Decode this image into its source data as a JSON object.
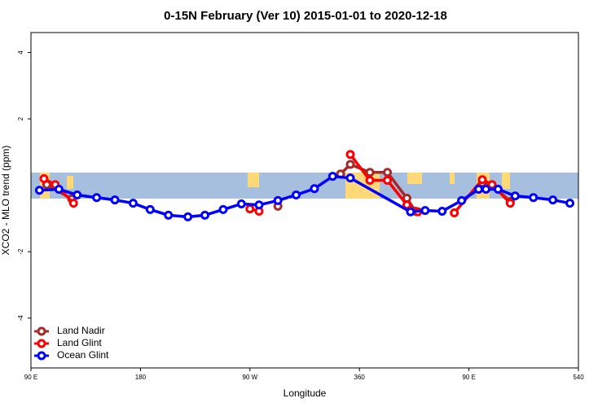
{
  "chart_data": {
    "type": "line",
    "title": "0-15N February (Ver 10)   2015-01-01 to 2020-12-18",
    "x_label": "Longitude",
    "y_label": "XCO2 - MLO trend (ppm)",
    "xlim": [
      90,
      540
    ],
    "xticks": [
      {
        "value": 90,
        "label": "90 E"
      },
      180,
      {
        "value": 270,
        "label": "90 W"
      },
      360,
      {
        "value": 450,
        "label": "90 E"
      },
      540
    ],
    "ylim": [
      -5.5,
      4.6
    ],
    "yticks": [
      -4,
      -2,
      2,
      4
    ],
    "legend": "bottom-left",
    "series": [
      {
        "name": "Land Nadir",
        "color": "#a52a2a",
        "x": [
          103,
          123.5,
          null,
          293,
          null,
          344.5,
          352.5,
          368.6,
          383,
          399,
          406,
          null,
          461,
          469,
          484
        ],
        "values": [
          0.02,
          -0.41,
          null,
          -0.63,
          null,
          0.34,
          0.63,
          0.39,
          0.39,
          -0.39,
          -0.78,
          null,
          0.07,
          0.02,
          -0.49
        ]
      },
      {
        "name": "Land Glint",
        "color": "#ff0000",
        "x": [
          100.7,
          110,
          125,
          null,
          270,
          277.5,
          null,
          352.5,
          368.6,
          383,
          399,
          408,
          null,
          438,
          461,
          469,
          484
        ],
        "values": [
          0.2,
          0.02,
          -0.54,
          null,
          -0.71,
          -0.78,
          null,
          0.93,
          0.15,
          0.15,
          -0.59,
          -0.8,
          null,
          -0.83,
          0.17,
          0.02,
          -0.54
        ]
      },
      {
        "name": "Ocean Glint",
        "color": "#0000ff",
        "x": [
          97,
          113,
          128,
          144,
          159,
          174,
          188,
          203,
          219,
          233,
          248,
          263,
          277.5,
          293,
          308,
          323,
          338,
          352.5,
          402,
          414,
          428,
          444,
          458,
          464,
          474,
          488,
          503,
          519,
          533
        ],
        "values": [
          -0.15,
          -0.12,
          -0.29,
          -0.37,
          -0.44,
          -0.54,
          -0.73,
          -0.9,
          -0.95,
          -0.9,
          -0.73,
          -0.56,
          -0.59,
          -0.46,
          -0.29,
          -0.1,
          0.27,
          0.22,
          -0.8,
          -0.76,
          -0.78,
          -0.46,
          -0.12,
          -0.12,
          -0.12,
          -0.32,
          -0.37,
          -0.44,
          -0.54
        ]
      }
    ]
  }
}
